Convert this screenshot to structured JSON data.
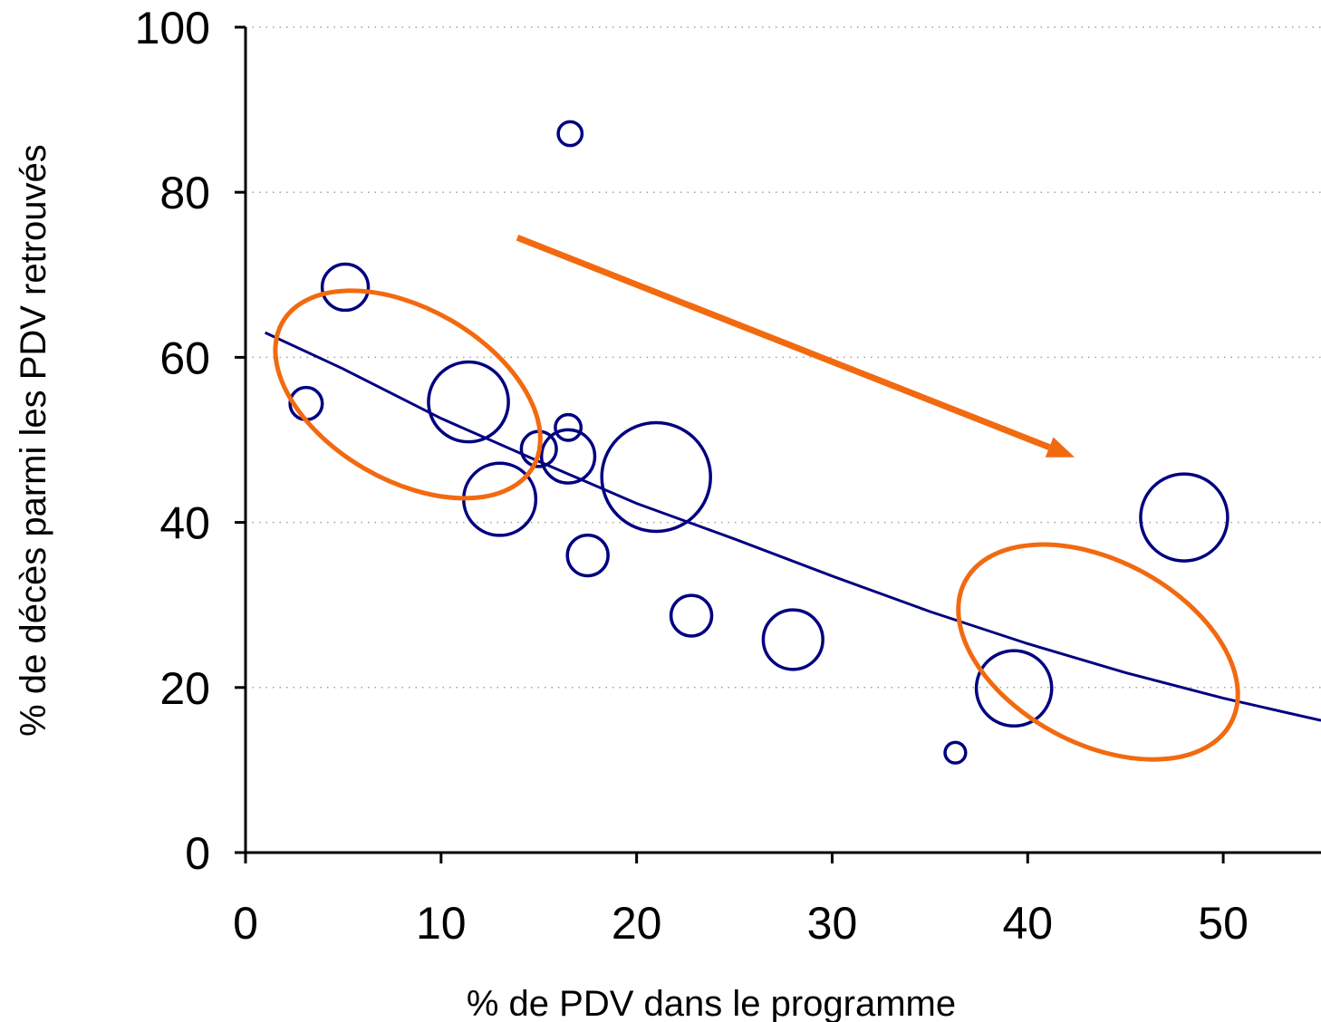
{
  "chart_data": {
    "type": "scatter",
    "xlabel": "% de PDV dans le programme",
    "ylabel": "% de décès parmi les PDV retrouvés",
    "xlim": [
      0,
      55
    ],
    "ylim": [
      0,
      100
    ],
    "x_ticks": [
      0,
      10,
      20,
      30,
      40,
      50
    ],
    "y_ticks": [
      0,
      20,
      40,
      60,
      80,
      100
    ],
    "x_tick_labels": [
      "0",
      "10",
      "20",
      "30",
      "40",
      "50"
    ],
    "y_tick_labels": [
      "0",
      "20",
      "40",
      "60",
      "80",
      "100"
    ],
    "grid": "horizontal dotted",
    "series": [
      {
        "style": "bubbles",
        "color": "#000080",
        "points": [
          {
            "x": 16.6,
            "y": 87.1,
            "size": 1.2
          },
          {
            "x": 5.1,
            "y": 68.5,
            "size": 4.5
          },
          {
            "x": 3.1,
            "y": 54.4,
            "size": 2.2
          },
          {
            "x": 11.4,
            "y": 54.6,
            "size": 13.5
          },
          {
            "x": 16.5,
            "y": 51.5,
            "size": 1.4
          },
          {
            "x": 15.0,
            "y": 48.9,
            "size": 2.6
          },
          {
            "x": 16.5,
            "y": 48.0,
            "size": 6.0
          },
          {
            "x": 13.0,
            "y": 42.8,
            "size": 11.0
          },
          {
            "x": 21.0,
            "y": 45.5,
            "size": 25.0
          },
          {
            "x": 17.5,
            "y": 36.0,
            "size": 3.5
          },
          {
            "x": 22.8,
            "y": 28.7,
            "size": 3.5
          },
          {
            "x": 28.0,
            "y": 25.8,
            "size": 7.5
          },
          {
            "x": 39.3,
            "y": 19.9,
            "size": 12.0
          },
          {
            "x": 36.3,
            "y": 12.1,
            "size": 0.9
          },
          {
            "x": 48.0,
            "y": 40.6,
            "size": 16.0
          }
        ]
      },
      {
        "style": "fitted-curve",
        "color": "#000080",
        "x": [
          1,
          5,
          10,
          15,
          20,
          25,
          30,
          35,
          40,
          45,
          50,
          55
        ],
        "y": [
          63.0,
          58.6,
          52.6,
          47.4,
          42.3,
          38.0,
          33.5,
          29.2,
          25.3,
          21.8,
          18.7,
          16.0
        ]
      }
    ],
    "annotations": [
      {
        "type": "arrow",
        "color": "#f26a10",
        "from": [
          13.9,
          74.5
        ],
        "to": [
          42.4,
          47.9
        ]
      },
      {
        "type": "ellipse",
        "color": "#f26a10",
        "cx": 8.3,
        "cy": 55.5,
        "rx": 7.4,
        "ry": 10.4,
        "rotate_deg": 30
      },
      {
        "type": "ellipse",
        "color": "#f26a10",
        "cx": 43.6,
        "cy": 24.3,
        "rx": 7.7,
        "ry": 11.1,
        "rotate_deg": 28
      }
    ]
  }
}
